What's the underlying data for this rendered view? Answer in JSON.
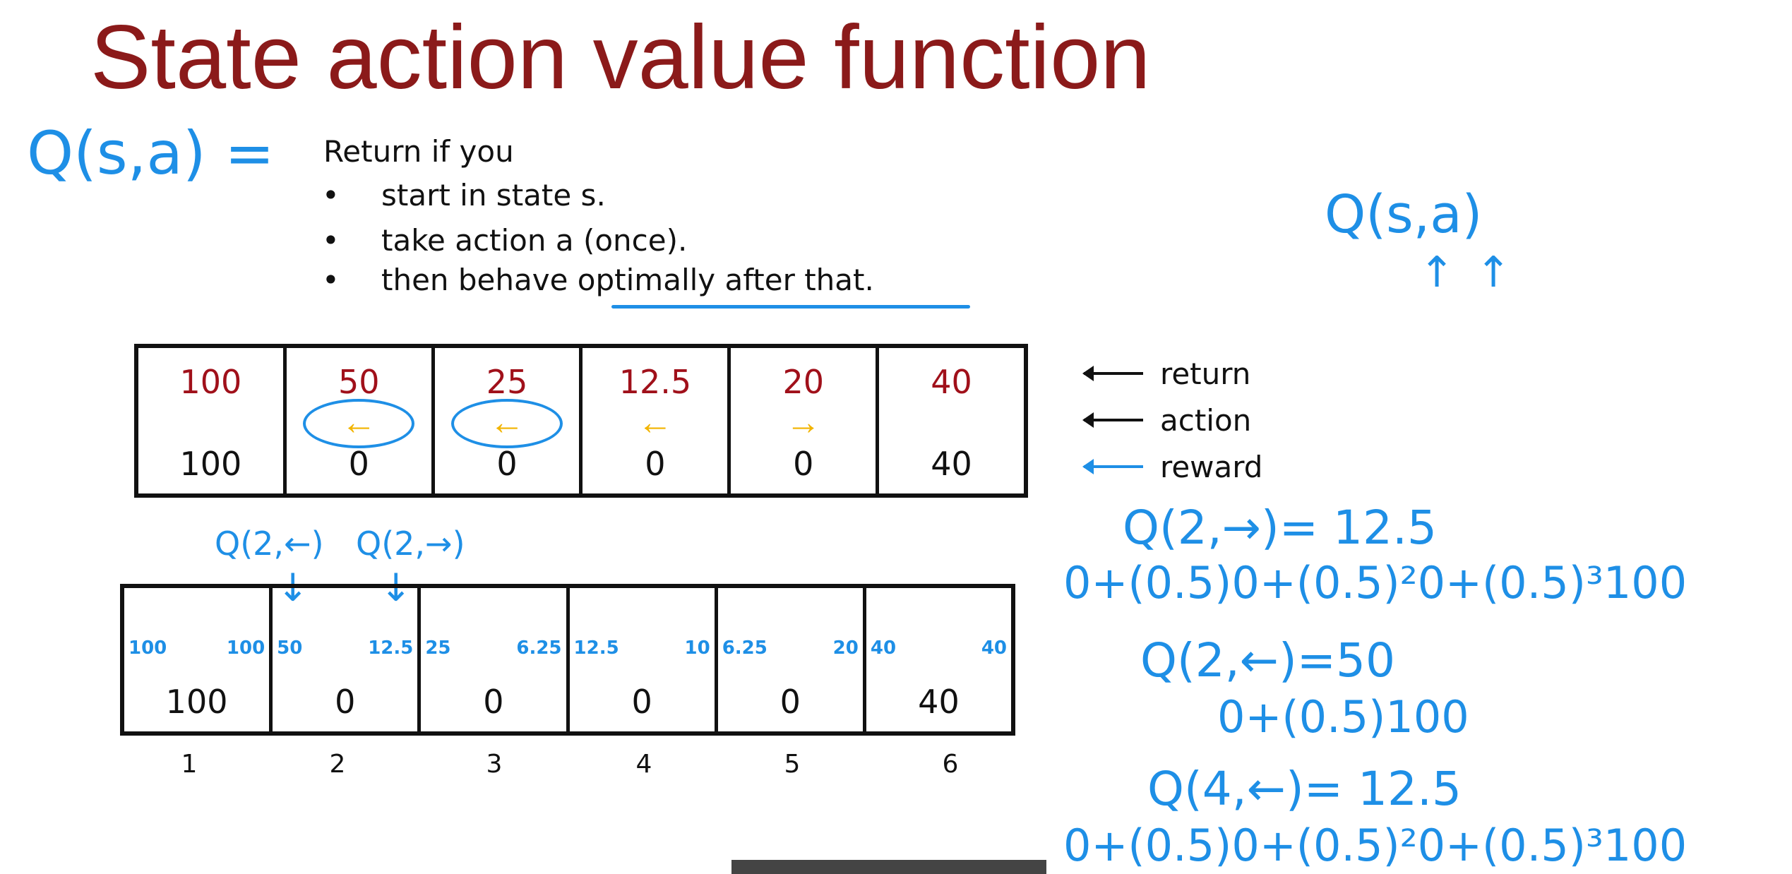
{
  "title": "State action value function",
  "definition": {
    "lhs": "Q(s,a) =",
    "intro": "Return if you",
    "bullets": [
      "start in state s.",
      "take action a (once).",
      "then behave optimally after that."
    ],
    "underlined": "optimally after that."
  },
  "top_grid": {
    "cells": [
      {
        "return": "100",
        "action": "",
        "reward": "100",
        "circled": false
      },
      {
        "return": "50",
        "action": "←",
        "reward": "0",
        "circled": true
      },
      {
        "return": "25",
        "action": "←",
        "reward": "0",
        "circled": true
      },
      {
        "return": "12.5",
        "action": "←",
        "reward": "0",
        "circled": false
      },
      {
        "return": "20",
        "action": "→",
        "reward": "0",
        "circled": false
      },
      {
        "return": "40",
        "action": "",
        "reward": "40",
        "circled": false
      }
    ]
  },
  "legend": [
    {
      "label": "return",
      "color": "#111111"
    },
    {
      "label": "action",
      "color": "#111111"
    },
    {
      "label": "reward",
      "color": "#1e8fe6"
    }
  ],
  "annotations": {
    "q_left": "Q(2,←)",
    "q_right": "Q(2,→)",
    "q_sa": "Q(s,a)"
  },
  "bottom_grid": {
    "cells": [
      {
        "q_left": "100",
        "q_right": "100",
        "reward": "100",
        "state": "1"
      },
      {
        "q_left": "50",
        "q_right": "12.5",
        "reward": "0",
        "state": "2"
      },
      {
        "q_left": "25",
        "q_right": "6.25",
        "reward": "0",
        "state": "3"
      },
      {
        "q_left": "12.5",
        "q_right": "10",
        "reward": "0",
        "state": "4"
      },
      {
        "q_left": "6.25",
        "q_right": "20",
        "reward": "0",
        "state": "5"
      },
      {
        "q_left": "40",
        "q_right": "40",
        "reward": "40",
        "state": "6"
      }
    ]
  },
  "equations": [
    "Q(2,→)= 12.5",
    "0+(0.5)0+(0.5)²0+(0.5)³100",
    "Q(2,←)=50",
    "0+(0.5)100",
    "Q(4,←)= 12.5",
    "0+(0.5)0+(0.5)²0+(0.5)³100"
  ],
  "colors": {
    "title": "#8b1a1a",
    "handwriting": "#1e8fe6",
    "return": "#a0101a",
    "action": "#f2b400"
  }
}
